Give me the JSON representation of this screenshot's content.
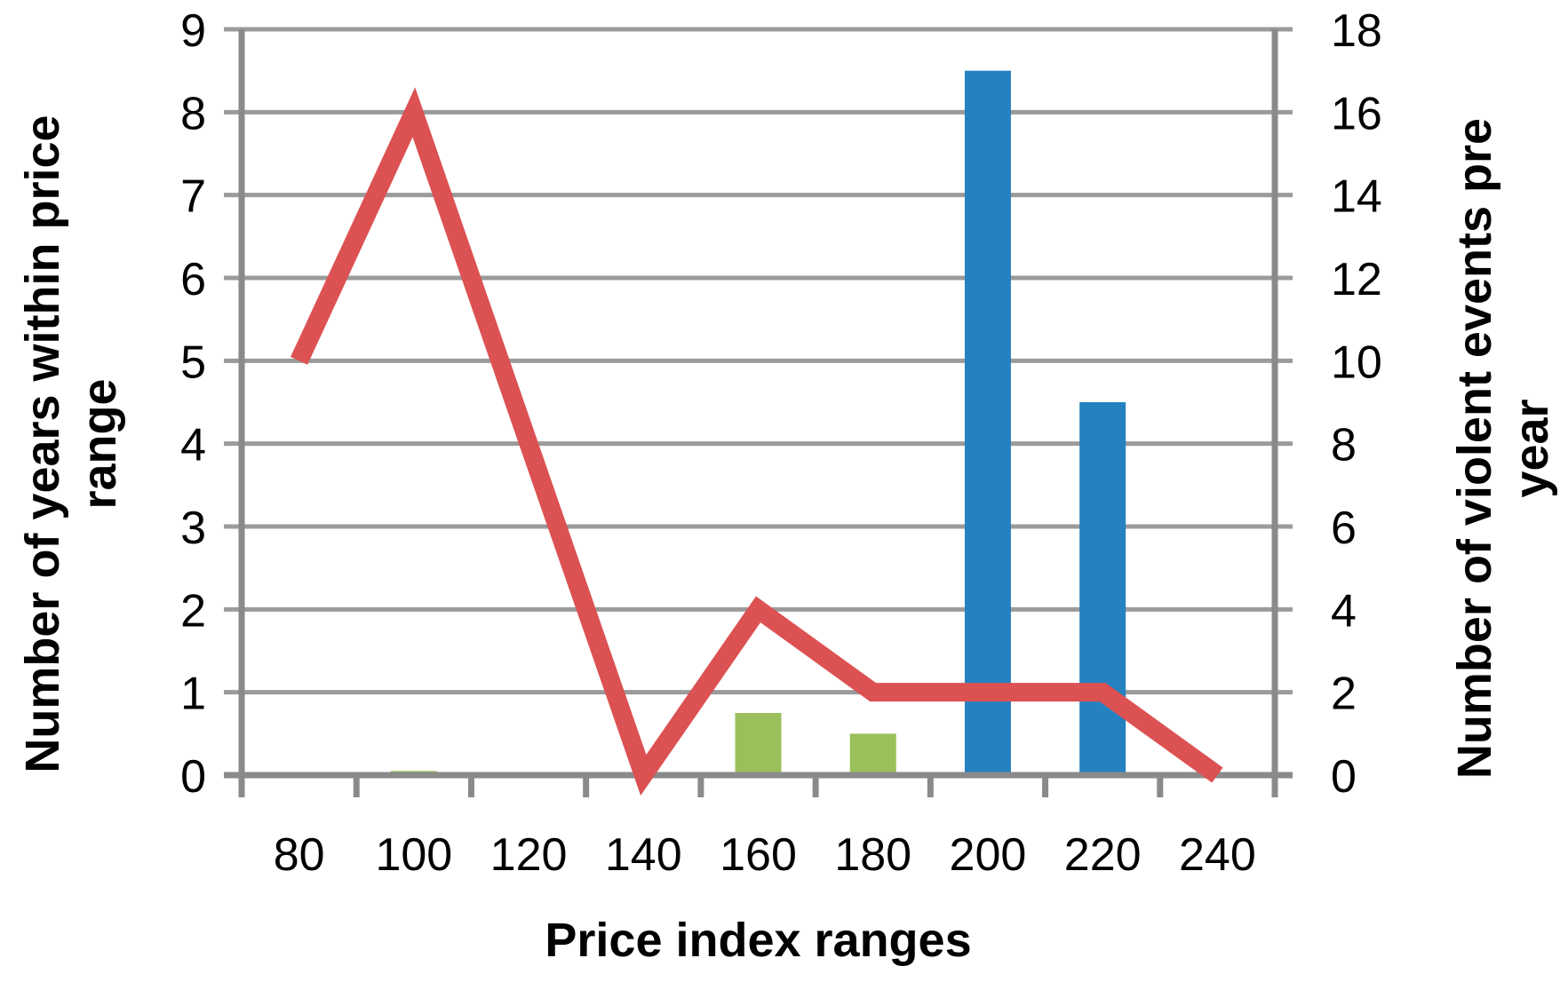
{
  "chart_data": {
    "type": "combo",
    "title": "",
    "categories": [
      "80",
      "100",
      "120",
      "140",
      "160",
      "180",
      "200",
      "220",
      "240"
    ],
    "x_axis": {
      "title": "Price index ranges"
    },
    "left_axis": {
      "title_lines": [
        "Number of years within price",
        "range"
      ],
      "min": 0,
      "max": 9,
      "tick_step": 1,
      "ticks": [
        0,
        1,
        2,
        3,
        4,
        5,
        6,
        7,
        8,
        9
      ]
    },
    "right_axis": {
      "title_lines": [
        "Number of violent events pre",
        "year"
      ],
      "min": 0,
      "max": 18,
      "tick_step": 2,
      "ticks": [
        0,
        2,
        4,
        6,
        8,
        10,
        12,
        14,
        16,
        18
      ]
    },
    "series": [
      {
        "name": "green-bars",
        "type": "bar",
        "axis": "left",
        "color": "#9ABF5B",
        "values": [
          0,
          0.05,
          0,
          0,
          0.75,
          0.5,
          0,
          0,
          0
        ]
      },
      {
        "name": "blue-bars",
        "type": "bar",
        "axis": "left",
        "color": "#2681C1",
        "values": [
          0,
          0,
          0,
          0,
          0,
          0,
          8.5,
          4.5,
          0
        ]
      },
      {
        "name": "red-line",
        "type": "line",
        "axis": "right",
        "color": "#DC5152",
        "values": [
          10,
          16,
          8,
          0,
          4,
          2,
          2,
          2,
          0
        ]
      }
    ],
    "grid": true,
    "legend_position": "none",
    "colors": {
      "gridline": "#9B9B9B",
      "axis_line": "#8A8A8A",
      "text": "#000000",
      "background": "#FFFFFF"
    }
  }
}
